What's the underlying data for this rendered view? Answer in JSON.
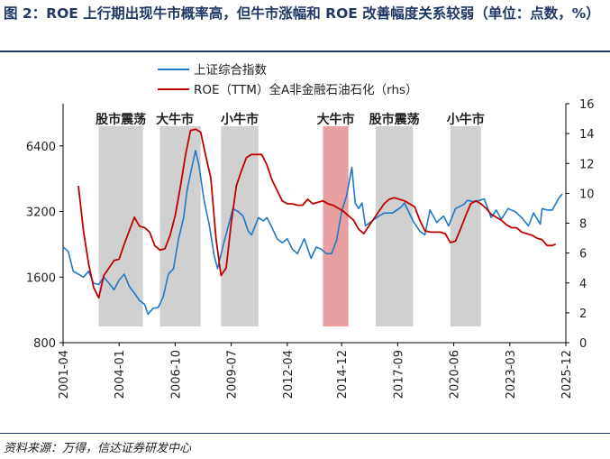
{
  "caption": "图 2：ROE 上行期出现牛市概率高，但牛市涨幅和 ROE 改善幅度关系较弱（单位：点数，%）",
  "source": "资料来源：万得，信达证券研发中心",
  "chart_data": {
    "type": "line",
    "title": "",
    "x_ticks": [
      "2001-04",
      "2004-01",
      "2006-10",
      "2009-07",
      "2012-04",
      "2014-12",
      "2017-09",
      "2020-06",
      "2023-03",
      "2025-12"
    ],
    "xlim": [
      "2001-04",
      "2025-12"
    ],
    "ylim_left": [
      800,
      10000
    ],
    "y_scale_left": "log",
    "y_ticks_left": [
      800,
      1600,
      3200,
      6400
    ],
    "ylim_right": [
      0,
      16
    ],
    "y_ticks_right": [
      0,
      2,
      4,
      6,
      8,
      10,
      12,
      14,
      16
    ],
    "legend_position": "top-center",
    "grid": false,
    "series": [
      {
        "name": "上证综合指数",
        "axis": "left",
        "color": "#1f78c8",
        "points": [
          [
            "2001-04",
            2200
          ],
          [
            "2001-07",
            2100
          ],
          [
            "2001-10",
            1700
          ],
          [
            "2002-01",
            1650
          ],
          [
            "2002-04",
            1600
          ],
          [
            "2002-07",
            1700
          ],
          [
            "2002-10",
            1500
          ],
          [
            "2003-01",
            1480
          ],
          [
            "2003-04",
            1600
          ],
          [
            "2003-07",
            1500
          ],
          [
            "2003-10",
            1400
          ],
          [
            "2004-01",
            1550
          ],
          [
            "2004-04",
            1650
          ],
          [
            "2004-07",
            1450
          ],
          [
            "2004-10",
            1350
          ],
          [
            "2005-01",
            1250
          ],
          [
            "2005-04",
            1200
          ],
          [
            "2005-06",
            1080
          ],
          [
            "2005-09",
            1150
          ],
          [
            "2005-12",
            1160
          ],
          [
            "2006-03",
            1300
          ],
          [
            "2006-06",
            1650
          ],
          [
            "2006-09",
            1750
          ],
          [
            "2006-12",
            2400
          ],
          [
            "2007-03",
            3000
          ],
          [
            "2007-05",
            4000
          ],
          [
            "2007-08",
            5200
          ],
          [
            "2007-10",
            6100
          ],
          [
            "2007-12",
            5200
          ],
          [
            "2008-03",
            3600
          ],
          [
            "2008-06",
            2800
          ],
          [
            "2008-09",
            2000
          ],
          [
            "2008-11",
            1750
          ],
          [
            "2009-02",
            2200
          ],
          [
            "2009-05",
            2700
          ],
          [
            "2009-08",
            3300
          ],
          [
            "2009-11",
            3200
          ],
          [
            "2010-02",
            3050
          ],
          [
            "2010-05",
            2600
          ],
          [
            "2010-07",
            2500
          ],
          [
            "2010-11",
            3000
          ],
          [
            "2011-02",
            2900
          ],
          [
            "2011-04",
            3000
          ],
          [
            "2011-07",
            2700
          ],
          [
            "2011-10",
            2400
          ],
          [
            "2012-01",
            2300
          ],
          [
            "2012-04",
            2400
          ],
          [
            "2012-07",
            2150
          ],
          [
            "2012-10",
            2050
          ],
          [
            "2013-02",
            2400
          ],
          [
            "2013-06",
            1950
          ],
          [
            "2013-09",
            2200
          ],
          [
            "2013-12",
            2150
          ],
          [
            "2014-03",
            2050
          ],
          [
            "2014-06",
            2050
          ],
          [
            "2014-09",
            2350
          ],
          [
            "2014-12",
            3200
          ],
          [
            "2015-03",
            3800
          ],
          [
            "2015-06",
            5100
          ],
          [
            "2015-08",
            3500
          ],
          [
            "2015-10",
            3300
          ],
          [
            "2015-12",
            3500
          ],
          [
            "2016-02",
            2750
          ],
          [
            "2016-06",
            2900
          ],
          [
            "2016-10",
            3050
          ],
          [
            "2017-01",
            3150
          ],
          [
            "2017-06",
            3150
          ],
          [
            "2017-11",
            3350
          ],
          [
            "2018-01",
            3500
          ],
          [
            "2018-06",
            2900
          ],
          [
            "2018-10",
            2600
          ],
          [
            "2019-01",
            2500
          ],
          [
            "2019-04",
            3250
          ],
          [
            "2019-08",
            2850
          ],
          [
            "2019-12",
            3050
          ],
          [
            "2020-03",
            2750
          ],
          [
            "2020-07",
            3300
          ],
          [
            "2020-12",
            3450
          ],
          [
            "2021-02",
            3600
          ],
          [
            "2021-06",
            3550
          ],
          [
            "2021-12",
            3650
          ],
          [
            "2022-04",
            3000
          ],
          [
            "2022-07",
            3250
          ],
          [
            "2022-10",
            2950
          ],
          [
            "2023-02",
            3300
          ],
          [
            "2023-06",
            3200
          ],
          [
            "2023-10",
            3000
          ],
          [
            "2024-02",
            2750
          ],
          [
            "2024-05",
            3150
          ],
          [
            "2024-09",
            2800
          ],
          [
            "2024-10",
            3300
          ],
          [
            "2025-01",
            3250
          ],
          [
            "2025-04",
            3250
          ],
          [
            "2025-08",
            3700
          ],
          [
            "2025-10",
            3850
          ]
        ]
      },
      {
        "name": "ROE（TTM）全A非金融石油石化（rhs）",
        "axis": "right",
        "color": "#c00000",
        "points": [
          [
            "2002-01",
            10.5
          ],
          [
            "2002-04",
            7.5
          ],
          [
            "2002-07",
            5.3
          ],
          [
            "2002-10",
            3.7
          ],
          [
            "2003-01",
            3.0
          ],
          [
            "2003-04",
            4.5
          ],
          [
            "2003-07",
            5.0
          ],
          [
            "2003-10",
            5.5
          ],
          [
            "2004-01",
            5.6
          ],
          [
            "2004-04",
            6.6
          ],
          [
            "2004-07",
            7.5
          ],
          [
            "2004-10",
            8.4
          ],
          [
            "2005-01",
            7.8
          ],
          [
            "2005-04",
            7.7
          ],
          [
            "2005-07",
            7.4
          ],
          [
            "2005-10",
            6.5
          ],
          [
            "2006-01",
            6.2
          ],
          [
            "2006-04",
            6.3
          ],
          [
            "2006-07",
            7.2
          ],
          [
            "2006-10",
            8.5
          ],
          [
            "2007-01",
            10.4
          ],
          [
            "2007-04",
            12.5
          ],
          [
            "2007-07",
            14.2
          ],
          [
            "2007-10",
            14.3
          ],
          [
            "2008-01",
            14.1
          ],
          [
            "2008-04",
            12.5
          ],
          [
            "2008-07",
            11.0
          ],
          [
            "2008-10",
            7.0
          ],
          [
            "2009-01",
            4.5
          ],
          [
            "2009-04",
            5.0
          ],
          [
            "2009-07",
            8.0
          ],
          [
            "2009-10",
            10.5
          ],
          [
            "2010-01",
            11.5
          ],
          [
            "2010-04",
            12.4
          ],
          [
            "2010-07",
            12.6
          ],
          [
            "2010-10",
            12.6
          ],
          [
            "2011-01",
            12.6
          ],
          [
            "2011-04",
            11.9
          ],
          [
            "2011-07",
            10.9
          ],
          [
            "2011-10",
            10.2
          ],
          [
            "2012-01",
            9.5
          ],
          [
            "2012-04",
            9.3
          ],
          [
            "2012-07",
            9.3
          ],
          [
            "2012-10",
            9.2
          ],
          [
            "2013-01",
            9.2
          ],
          [
            "2013-04",
            9.6
          ],
          [
            "2013-07",
            9.3
          ],
          [
            "2013-10",
            9.4
          ],
          [
            "2014-01",
            9.5
          ],
          [
            "2014-04",
            9.3
          ],
          [
            "2014-07",
            9.2
          ],
          [
            "2014-10",
            9.0
          ],
          [
            "2015-01",
            8.8
          ],
          [
            "2015-04",
            8.5
          ],
          [
            "2015-07",
            8.2
          ],
          [
            "2015-10",
            7.6
          ],
          [
            "2016-01",
            7.3
          ],
          [
            "2016-04",
            7.8
          ],
          [
            "2016-07",
            8.3
          ],
          [
            "2016-10",
            8.8
          ],
          [
            "2017-01",
            9.3
          ],
          [
            "2017-04",
            9.6
          ],
          [
            "2017-07",
            9.7
          ],
          [
            "2017-10",
            9.6
          ],
          [
            "2018-01",
            9.5
          ],
          [
            "2018-04",
            9.3
          ],
          [
            "2018-07",
            9.1
          ],
          [
            "2018-10",
            8.2
          ],
          [
            "2019-01",
            7.5
          ],
          [
            "2019-04",
            7.4
          ],
          [
            "2019-07",
            7.4
          ],
          [
            "2019-10",
            7.4
          ],
          [
            "2020-01",
            7.3
          ],
          [
            "2020-04",
            6.7
          ],
          [
            "2020-07",
            6.8
          ],
          [
            "2020-10",
            7.6
          ],
          [
            "2021-01",
            8.5
          ],
          [
            "2021-04",
            9.3
          ],
          [
            "2021-07",
            9.5
          ],
          [
            "2021-10",
            9.3
          ],
          [
            "2022-01",
            9.0
          ],
          [
            "2022-04",
            8.6
          ],
          [
            "2022-07",
            8.4
          ],
          [
            "2022-10",
            8.2
          ],
          [
            "2023-01",
            7.9
          ],
          [
            "2023-04",
            7.7
          ],
          [
            "2023-07",
            7.7
          ],
          [
            "2023-10",
            7.4
          ],
          [
            "2024-01",
            7.3
          ],
          [
            "2024-04",
            7.2
          ],
          [
            "2024-07",
            7.0
          ],
          [
            "2024-10",
            6.9
          ],
          [
            "2025-01",
            6.5
          ],
          [
            "2025-04",
            6.5
          ],
          [
            "2025-06",
            6.6
          ]
        ]
      }
    ],
    "regions": [
      {
        "label": "股市震荡",
        "start": "2003-01",
        "end": "2005-03",
        "color": "#d0d0d0"
      },
      {
        "label": "大牛市",
        "start": "2006-01",
        "end": "2008-01",
        "color": "#d0d0d0"
      },
      {
        "label": "小牛市",
        "start": "2009-01",
        "end": "2010-11",
        "color": "#d0d0d0"
      },
      {
        "label": "大牛市",
        "start": "2014-01",
        "end": "2015-04",
        "color": "#e8a0a0"
      },
      {
        "label": "股市震荡",
        "start": "2016-08",
        "end": "2018-06",
        "color": "#d0d0d0"
      },
      {
        "label": "小牛市",
        "start": "2020-04",
        "end": "2021-10",
        "color": "#d0d0d0"
      }
    ]
  }
}
